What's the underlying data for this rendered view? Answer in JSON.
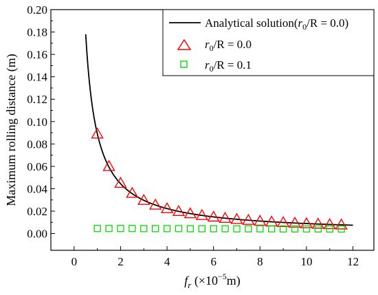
{
  "chart_data": {
    "type": "line+scatter",
    "xlabel": "f_r (×10⁻⁵m)",
    "xlabel_parts": {
      "var": "f",
      "sub": "r",
      "unit_pre": " (×10",
      "exp": "−5",
      "unit_post": "m)"
    },
    "ylabel": "Maximum rolling distance (m)",
    "xlim": [
      -1,
      12.9
    ],
    "ylim": [
      -0.015,
      0.2
    ],
    "xticks": [
      0,
      2,
      4,
      6,
      8,
      10,
      12
    ],
    "yticks": [
      0.0,
      0.02,
      0.04,
      0.06,
      0.08,
      0.1,
      0.12,
      0.14,
      0.16,
      0.18,
      0.2
    ],
    "xtick_labels": [
      "0",
      "2",
      "4",
      "6",
      "8",
      "10",
      "12"
    ],
    "ytick_labels": [
      "0.00",
      "0.02",
      "0.04",
      "0.06",
      "0.08",
      "0.10",
      "0.12",
      "0.14",
      "0.16",
      "0.18",
      "0.20"
    ],
    "grid": false,
    "legend_position": "top-right",
    "series": [
      {
        "name": "Analytical solution(r0/R = 0.0)",
        "legend_parts": {
          "pre": "Analytical solution(",
          "var": "r",
          "sub": "0",
          "post": "/R = 0.0)"
        },
        "kind": "line",
        "color": "#000000",
        "formula_constant": 0.089,
        "x_range": [
          0.5,
          12.0
        ]
      },
      {
        "name": "r0/R = 0.0",
        "legend_parts": {
          "var": "r",
          "sub": "0",
          "post": "/R = 0.0"
        },
        "kind": "scatter",
        "marker": "triangle",
        "color": "#ff0000",
        "x": [
          1.0,
          1.5,
          2.0,
          2.5,
          3.0,
          3.5,
          4.0,
          4.5,
          5.0,
          5.5,
          6.0,
          6.5,
          7.0,
          7.5,
          8.0,
          8.5,
          9.0,
          9.5,
          10.0,
          10.5,
          11.0,
          11.5
        ],
        "y": [
          0.089,
          0.06,
          0.045,
          0.036,
          0.0297,
          0.0255,
          0.0223,
          0.0198,
          0.0178,
          0.0162,
          0.0148,
          0.0137,
          0.0127,
          0.0119,
          0.0111,
          0.0105,
          0.0099,
          0.0094,
          0.0089,
          0.0085,
          0.0081,
          0.0078
        ]
      },
      {
        "name": "r0/R = 0.1",
        "legend_parts": {
          "var": "r",
          "sub": "0",
          "post": "/R = 0.1"
        },
        "kind": "scatter",
        "marker": "square",
        "color": "#00dd00",
        "x": [
          1.0,
          1.5,
          2.0,
          2.5,
          3.0,
          3.5,
          4.0,
          4.5,
          5.0,
          5.5,
          6.0,
          6.5,
          7.0,
          7.5,
          8.0,
          8.5,
          9.0,
          9.5,
          10.0,
          10.5,
          11.0,
          11.5
        ],
        "y": [
          0.0045,
          0.0045,
          0.0045,
          0.0045,
          0.0044,
          0.0044,
          0.0044,
          0.0044,
          0.0043,
          0.0043,
          0.0043,
          0.0043,
          0.0042,
          0.0042,
          0.0042,
          0.0042,
          0.0041,
          0.0041,
          0.0041,
          0.0041,
          0.004,
          0.004
        ]
      }
    ]
  }
}
